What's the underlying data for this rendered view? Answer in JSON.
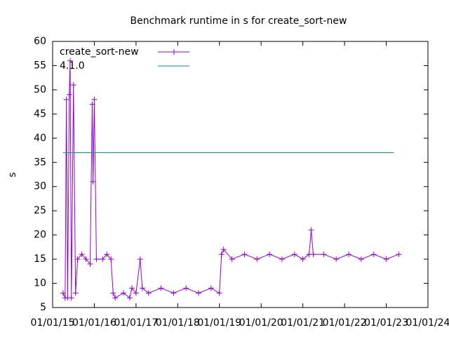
{
  "chart_data": {
    "type": "line",
    "title": "Benchmark runtime in s for create_sort-new",
    "y_label": "s",
    "xlim": [
      2015,
      2024
    ],
    "xticks": [
      {
        "value": 2015,
        "label": "01/01/15"
      },
      {
        "value": 2016,
        "label": "01/01/16"
      },
      {
        "value": 2017,
        "label": "01/01/17"
      },
      {
        "value": 2018,
        "label": "01/01/18"
      },
      {
        "value": 2019,
        "label": "01/01/19"
      },
      {
        "value": 2020,
        "label": "01/01/20"
      },
      {
        "value": 2021,
        "label": "01/01/21"
      },
      {
        "value": 2022,
        "label": "01/01/22"
      },
      {
        "value": 2023,
        "label": "01/01/23"
      },
      {
        "value": 2024,
        "label": "01/01/24"
      }
    ],
    "ylim": [
      5,
      60
    ],
    "yticks": [
      5,
      10,
      15,
      20,
      25,
      30,
      35,
      40,
      45,
      50,
      55,
      60
    ],
    "legend": "top-left",
    "series": [
      {
        "name": "create_sort-new",
        "color": "#9400d3",
        "markers": true,
        "x": [
          2015.25,
          2015.3,
          2015.33,
          2015.36,
          2015.4,
          2015.42,
          2015.45,
          2015.5,
          2015.55,
          2015.6,
          2015.7,
          2015.8,
          2015.9,
          2015.95,
          2015.97,
          2016.0,
          2016.05,
          2016.2,
          2016.3,
          2016.4,
          2016.45,
          2016.5,
          2016.7,
          2016.85,
          2016.9,
          2017.0,
          2017.1,
          2017.15,
          2017.3,
          2017.6,
          2017.9,
          2018.2,
          2018.5,
          2018.8,
          2019.0,
          2019.05,
          2019.1,
          2019.3,
          2019.6,
          2019.9,
          2020.2,
          2020.5,
          2020.8,
          2021.0,
          2021.15,
          2021.2,
          2021.25,
          2021.5,
          2021.8,
          2022.1,
          2022.4,
          2022.7,
          2023.0,
          2023.3
        ],
        "values": [
          8,
          7,
          48,
          7,
          49,
          56,
          7,
          51,
          8,
          15,
          16,
          15,
          14,
          47,
          31,
          48,
          15,
          15,
          16,
          15,
          8,
          7,
          8,
          7,
          9,
          8,
          15,
          9,
          8,
          9,
          8,
          9,
          8,
          9,
          8,
          16,
          17,
          15,
          16,
          15,
          16,
          15,
          16,
          15,
          16,
          21,
          16,
          16,
          15,
          16,
          15,
          16,
          15,
          16
        ]
      },
      {
        "name": "4.1.0",
        "color": "#009e73",
        "markers": false,
        "x": [
          2015.25,
          2023.18
        ],
        "values": [
          37,
          37
        ]
      }
    ]
  }
}
